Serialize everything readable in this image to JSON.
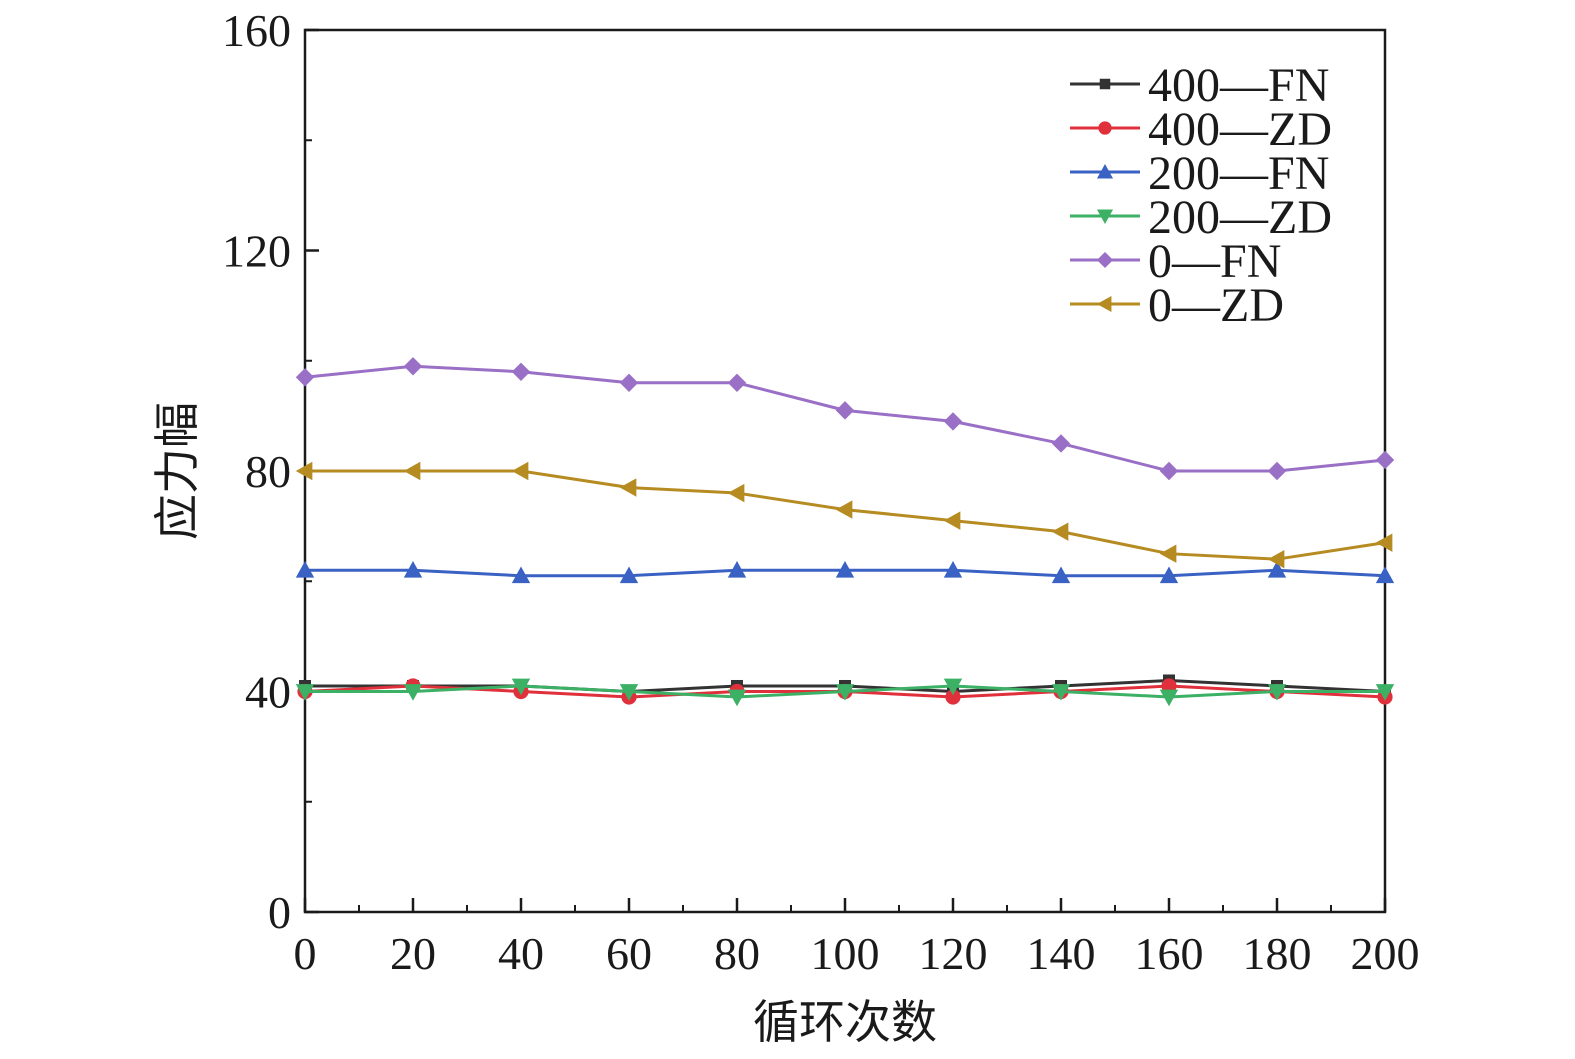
{
  "chart_data": {
    "type": "line",
    "title": "",
    "xlabel": "循环次数",
    "ylabel": "应力幅",
    "xlim": [
      0,
      200
    ],
    "ylim": [
      0,
      160
    ],
    "grid": false,
    "legend_placement": "top-right",
    "x": [
      0,
      20,
      40,
      60,
      80,
      100,
      120,
      140,
      160,
      180,
      200
    ],
    "x_tick_labels": [
      "0",
      "20",
      "40",
      "60",
      "80",
      "100",
      "120",
      "140",
      "160",
      "180",
      "200"
    ],
    "y_ticks": [
      0,
      40,
      80,
      120,
      160
    ],
    "y_tick_labels": [
      "0",
      "40",
      "80",
      "120",
      "160"
    ],
    "series": [
      {
        "name": "400—FN",
        "color": "#333333",
        "marker": "square",
        "values": [
          41,
          41,
          41,
          40,
          41,
          41,
          40,
          41,
          42,
          41,
          40
        ]
      },
      {
        "name": "400—ZD",
        "color": "#e0303b",
        "marker": "circle",
        "values": [
          40,
          41,
          40,
          39,
          40,
          40,
          39,
          40,
          41,
          40,
          39
        ]
      },
      {
        "name": "200—FN",
        "color": "#3a62c4",
        "marker": "triangle-up",
        "values": [
          62,
          62,
          61,
          61,
          62,
          62,
          62,
          61,
          61,
          62,
          61
        ]
      },
      {
        "name": "200—ZD",
        "color": "#3cb065",
        "marker": "triangle-down",
        "values": [
          40,
          40,
          41,
          40,
          39,
          40,
          41,
          40,
          39,
          40,
          40
        ]
      },
      {
        "name": "0—FN",
        "color": "#9a6fc6",
        "marker": "diamond",
        "values": [
          97,
          99,
          98,
          96,
          96,
          91,
          89,
          85,
          80,
          80,
          82
        ]
      },
      {
        "name": "0—ZD",
        "color": "#b68b22",
        "marker": "triangle-left",
        "values": [
          80,
          80,
          80,
          77,
          76,
          73,
          71,
          69,
          65,
          64,
          67
        ]
      }
    ]
  }
}
